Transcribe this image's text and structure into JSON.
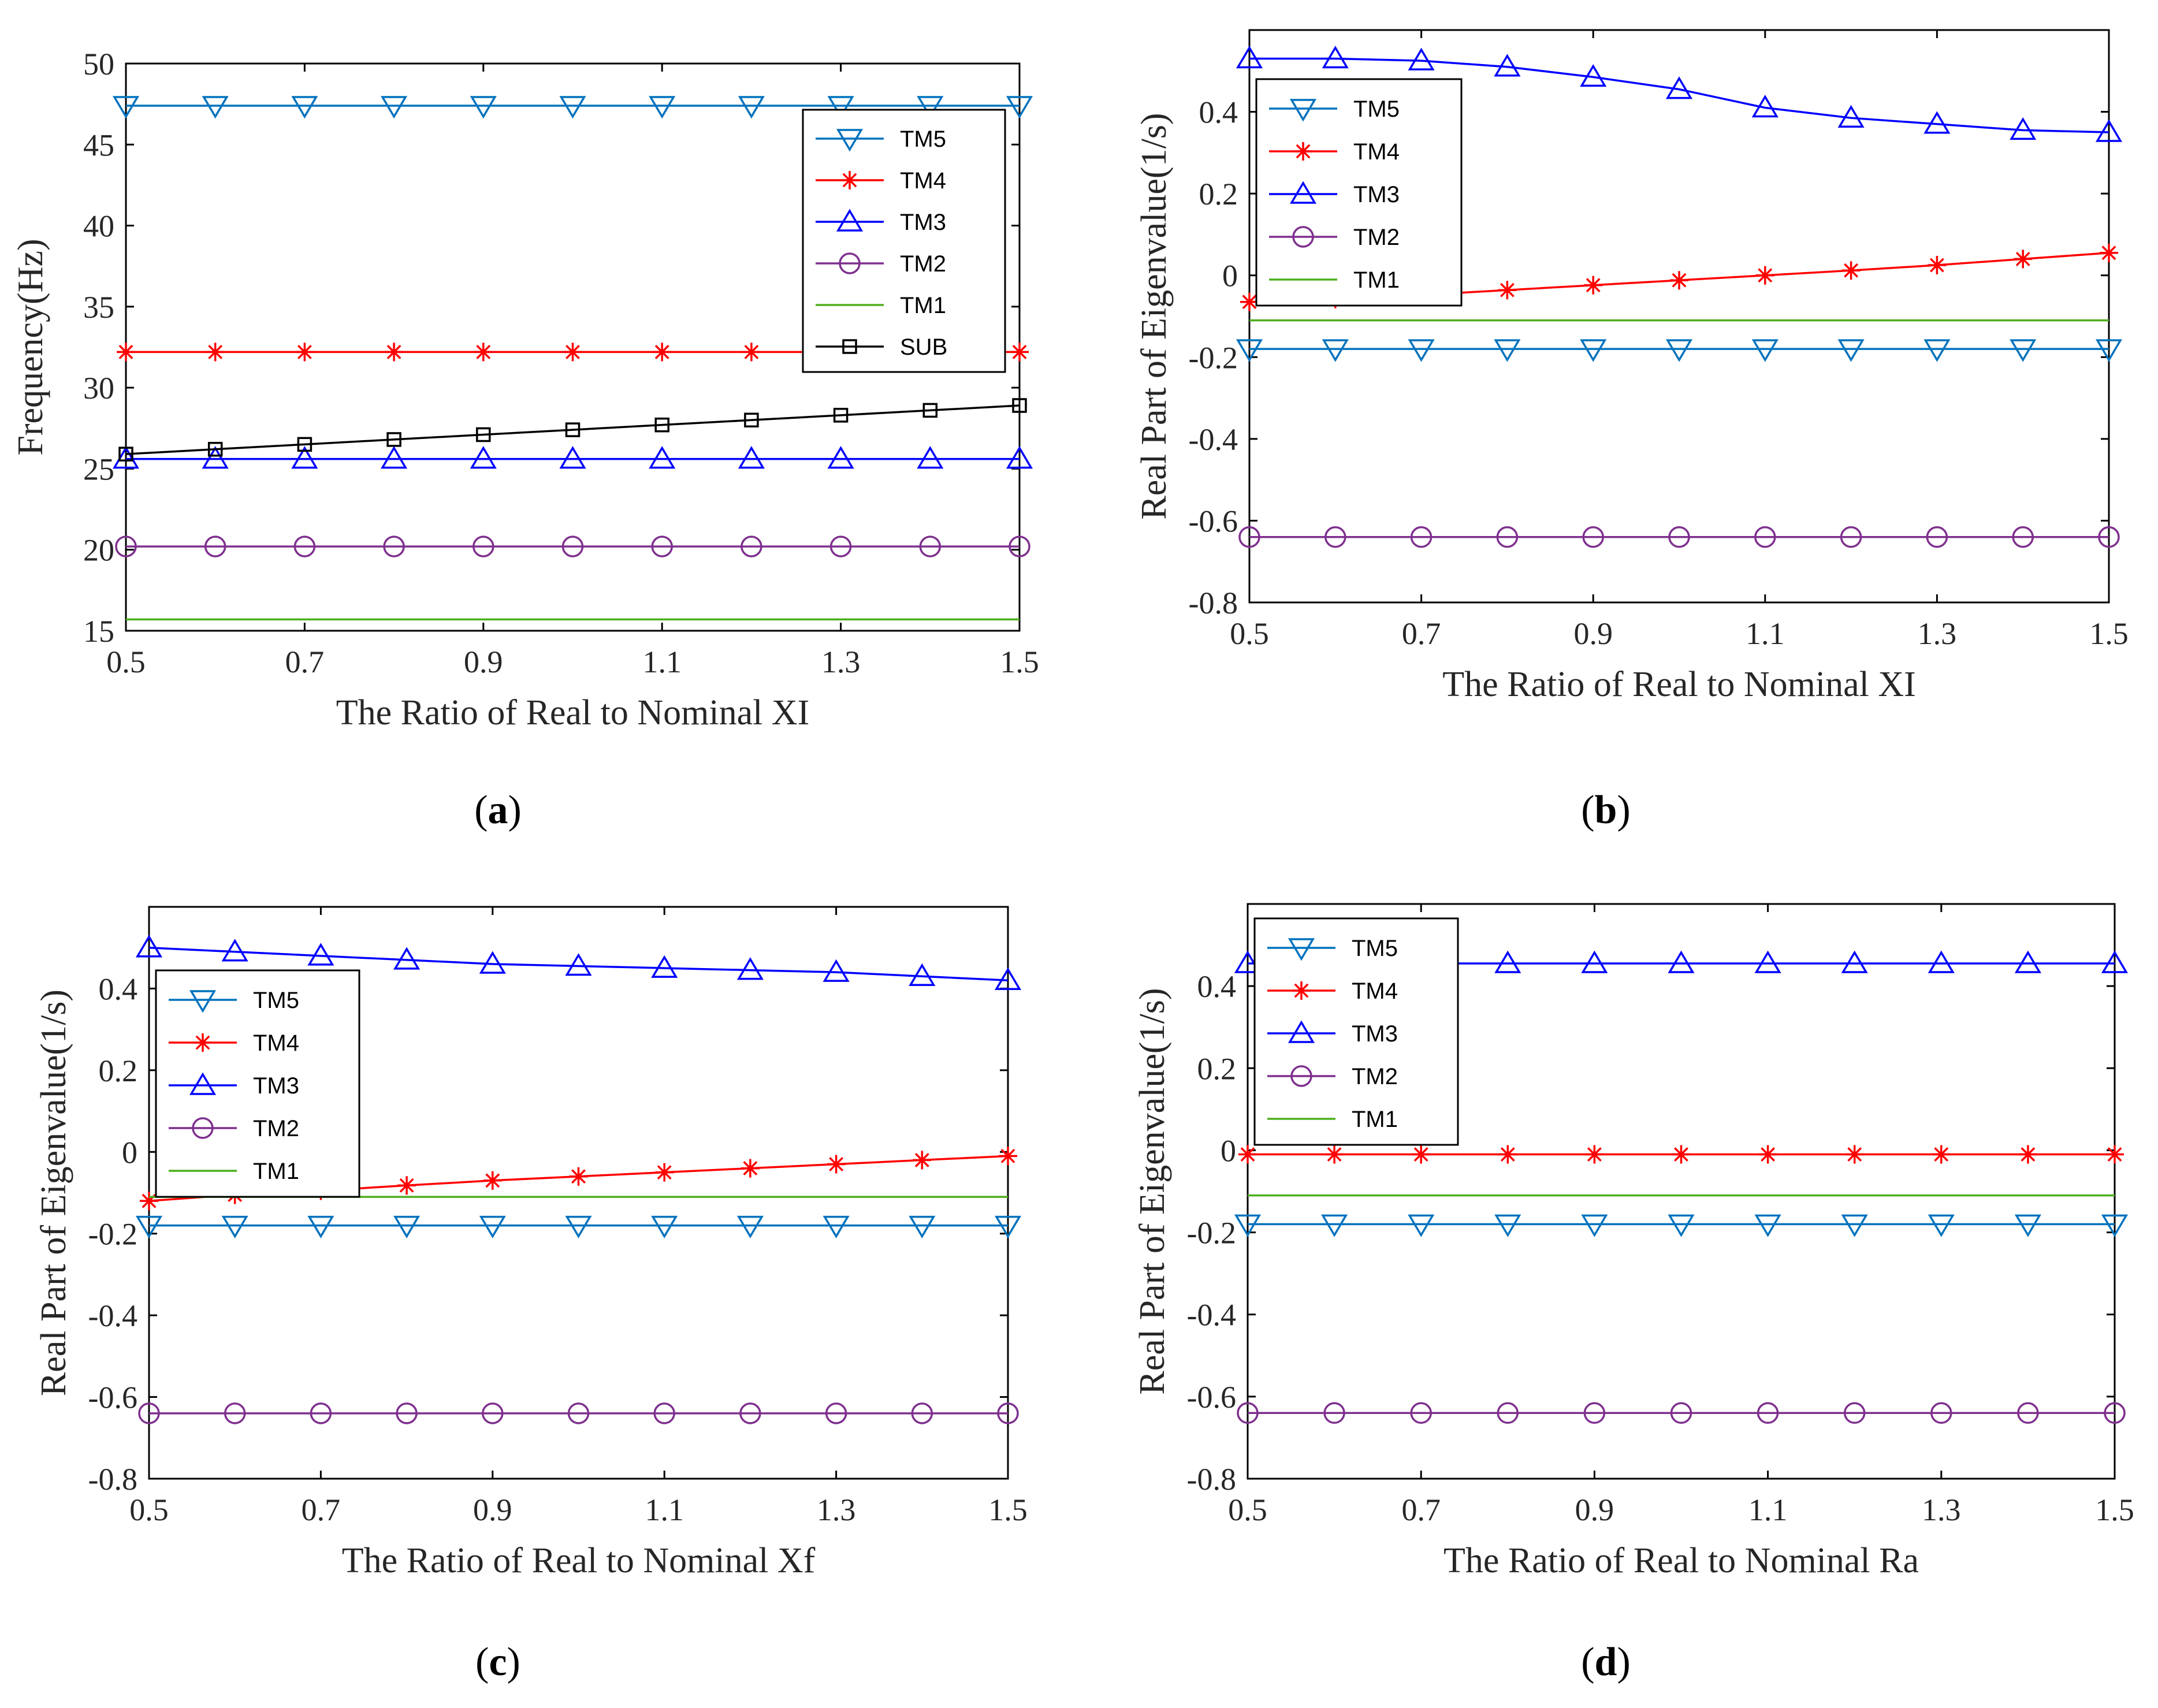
{
  "figure": {
    "series_colors": {
      "TM5": "#0072BD",
      "TM4": "#FF0000",
      "TM3": "#0000FF",
      "TM2": "#7E2F8E",
      "TM1": "#4DAF1E",
      "SUB": "#000000"
    },
    "series_markers": {
      "TM5": "triangle-down",
      "TM4": "asterisk",
      "TM3": "triangle-up",
      "TM2": "circle",
      "TM1": "none",
      "SUB": "square"
    }
  },
  "chart_data": [
    {
      "id": "a",
      "caption_open": "(",
      "caption_letter": "a",
      "caption_close": ")",
      "type": "line",
      "title": "",
      "xlabel": "The Ratio of Real to Nominal XI",
      "ylabel": "Frequency(Hz)",
      "xlim": [
        0.5,
        1.5
      ],
      "ylim": [
        15,
        50
      ],
      "xticks": [
        "0.5",
        "0.7",
        "0.9",
        "1.1",
        "1.3",
        "1.5"
      ],
      "yticks": [
        "15",
        "20",
        "25",
        "30",
        "35",
        "40",
        "45",
        "50"
      ],
      "x": [
        0.5,
        0.6,
        0.7,
        0.8,
        0.9,
        1.0,
        1.1,
        1.2,
        1.3,
        1.4,
        1.5
      ],
      "legend_position": "top-right",
      "series": [
        {
          "name": "TM5",
          "values": [
            47.4,
            47.4,
            47.4,
            47.4,
            47.4,
            47.4,
            47.4,
            47.4,
            47.4,
            47.4,
            47.4
          ]
        },
        {
          "name": "TM4",
          "values": [
            32.2,
            32.2,
            32.2,
            32.2,
            32.2,
            32.2,
            32.2,
            32.2,
            32.2,
            32.2,
            32.2
          ]
        },
        {
          "name": "TM3",
          "values": [
            25.6,
            25.6,
            25.6,
            25.6,
            25.6,
            25.6,
            25.6,
            25.6,
            25.6,
            25.6,
            25.6
          ]
        },
        {
          "name": "TM2",
          "values": [
            20.2,
            20.2,
            20.2,
            20.2,
            20.2,
            20.2,
            20.2,
            20.2,
            20.2,
            20.2,
            20.2
          ]
        },
        {
          "name": "TM1",
          "values": [
            15.7,
            15.7,
            15.7,
            15.7,
            15.7,
            15.7,
            15.7,
            15.7,
            15.7,
            15.7,
            15.7
          ]
        },
        {
          "name": "SUB",
          "values": [
            25.9,
            26.2,
            26.5,
            26.8,
            27.1,
            27.4,
            27.7,
            28.0,
            28.3,
            28.6,
            28.9
          ]
        }
      ]
    },
    {
      "id": "b",
      "caption_open": "(",
      "caption_letter": "b",
      "caption_close": ")",
      "type": "line",
      "title": "",
      "xlabel": "The Ratio of Real to Nominal XI",
      "ylabel": "Real Part of Eigenvalue(1/s)",
      "xlim": [
        0.5,
        1.5
      ],
      "ylim": [
        -0.8,
        0.6
      ],
      "xticks": [
        "0.5",
        "0.7",
        "0.9",
        "1.1",
        "1.3",
        "1.5"
      ],
      "yticks": [
        "-0.8",
        "-0.6",
        "-0.4",
        "-0.2",
        "0",
        "0.2",
        "0.4"
      ],
      "x": [
        0.5,
        0.6,
        0.7,
        0.8,
        0.9,
        1.0,
        1.1,
        1.2,
        1.3,
        1.4,
        1.5
      ],
      "legend_position": "top-left",
      "series": [
        {
          "name": "TM5",
          "values": [
            -0.18,
            -0.18,
            -0.18,
            -0.18,
            -0.18,
            -0.18,
            -0.18,
            -0.18,
            -0.18,
            -0.18,
            -0.18
          ]
        },
        {
          "name": "TM4",
          "values": [
            -0.065,
            -0.058,
            -0.048,
            -0.036,
            -0.024,
            -0.012,
            0.0,
            0.012,
            0.025,
            0.04,
            0.055
          ]
        },
        {
          "name": "TM3",
          "values": [
            0.53,
            0.53,
            0.525,
            0.51,
            0.485,
            0.455,
            0.41,
            0.385,
            0.37,
            0.355,
            0.35
          ]
        },
        {
          "name": "TM2",
          "values": [
            -0.64,
            -0.64,
            -0.64,
            -0.64,
            -0.64,
            -0.64,
            -0.64,
            -0.64,
            -0.64,
            -0.64,
            -0.64
          ]
        },
        {
          "name": "TM1",
          "values": [
            -0.11,
            -0.11,
            -0.11,
            -0.11,
            -0.11,
            -0.11,
            -0.11,
            -0.11,
            -0.11,
            -0.11,
            -0.11
          ]
        }
      ]
    },
    {
      "id": "c",
      "caption_open": "(",
      "caption_letter": "c",
      "caption_close": ")",
      "type": "line",
      "title": "",
      "xlabel": "The Ratio of Real to Nominal Xf",
      "ylabel": "Real Part of Eigenvalue(1/s)",
      "xlim": [
        0.5,
        1.5
      ],
      "ylim": [
        -0.8,
        0.6
      ],
      "xticks": [
        "0.5",
        "0.7",
        "0.9",
        "1.1",
        "1.3",
        "1.5"
      ],
      "yticks": [
        "-0.8",
        "-0.6",
        "-0.4",
        "-0.2",
        "0",
        "0.2",
        "0.4"
      ],
      "x": [
        0.5,
        0.6,
        0.7,
        0.8,
        0.9,
        1.0,
        1.1,
        1.2,
        1.3,
        1.4,
        1.5
      ],
      "legend_position": "top-left",
      "series": [
        {
          "name": "TM5",
          "values": [
            -0.18,
            -0.18,
            -0.18,
            -0.18,
            -0.18,
            -0.18,
            -0.18,
            -0.18,
            -0.18,
            -0.18,
            -0.18
          ]
        },
        {
          "name": "TM4",
          "values": [
            -0.12,
            -0.105,
            -0.095,
            -0.082,
            -0.07,
            -0.06,
            -0.05,
            -0.04,
            -0.03,
            -0.02,
            -0.01
          ]
        },
        {
          "name": "TM3",
          "values": [
            0.5,
            0.49,
            0.48,
            0.47,
            0.46,
            0.455,
            0.45,
            0.445,
            0.44,
            0.43,
            0.42
          ]
        },
        {
          "name": "TM2",
          "values": [
            -0.64,
            -0.64,
            -0.64,
            -0.64,
            -0.64,
            -0.64,
            -0.64,
            -0.64,
            -0.64,
            -0.64,
            -0.64
          ]
        },
        {
          "name": "TM1",
          "values": [
            -0.11,
            -0.11,
            -0.11,
            -0.11,
            -0.11,
            -0.11,
            -0.11,
            -0.11,
            -0.11,
            -0.11,
            -0.11
          ]
        }
      ]
    },
    {
      "id": "d",
      "caption_open": "(",
      "caption_letter": "d",
      "caption_close": ")",
      "type": "line",
      "title": "",
      "xlabel": "The Ratio of Real to Nominal Ra",
      "ylabel": "Real Part of Eigenvalue(1/s)",
      "xlim": [
        0.5,
        1.5
      ],
      "ylim": [
        -0.8,
        0.6
      ],
      "xticks": [
        "0.5",
        "0.7",
        "0.9",
        "1.1",
        "1.3",
        "1.5"
      ],
      "yticks": [
        "-0.8",
        "-0.6",
        "-0.4",
        "-0.2",
        "0",
        "0.2",
        "0.4"
      ],
      "x": [
        0.5,
        0.6,
        0.7,
        0.8,
        0.9,
        1.0,
        1.1,
        1.2,
        1.3,
        1.4,
        1.5
      ],
      "legend_position": "top-left",
      "series": [
        {
          "name": "TM5",
          "values": [
            -0.18,
            -0.18,
            -0.18,
            -0.18,
            -0.18,
            -0.18,
            -0.18,
            -0.18,
            -0.18,
            -0.18,
            -0.18
          ]
        },
        {
          "name": "TM4",
          "values": [
            -0.01,
            -0.01,
            -0.01,
            -0.01,
            -0.01,
            -0.01,
            -0.01,
            -0.01,
            -0.01,
            -0.01,
            -0.01
          ]
        },
        {
          "name": "TM3",
          "values": [
            0.455,
            0.455,
            0.455,
            0.455,
            0.455,
            0.455,
            0.455,
            0.455,
            0.455,
            0.455,
            0.455
          ]
        },
        {
          "name": "TM2",
          "values": [
            -0.64,
            -0.64,
            -0.64,
            -0.64,
            -0.64,
            -0.64,
            -0.64,
            -0.64,
            -0.64,
            -0.64,
            -0.64
          ]
        },
        {
          "name": "TM1",
          "values": [
            -0.11,
            -0.11,
            -0.11,
            -0.11,
            -0.11,
            -0.11,
            -0.11,
            -0.11,
            -0.11,
            -0.11,
            -0.11
          ]
        }
      ]
    }
  ]
}
